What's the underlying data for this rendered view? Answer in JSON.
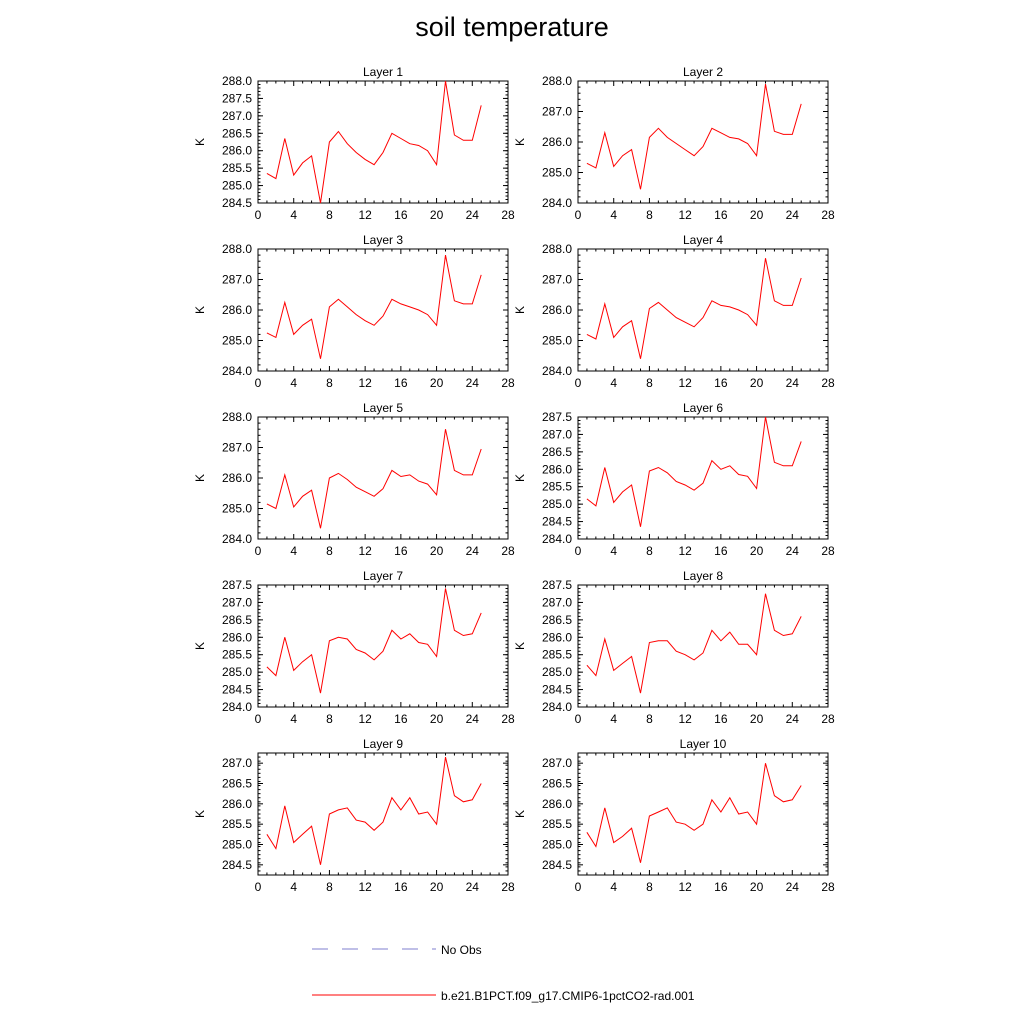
{
  "figure": {
    "title": "soil temperature",
    "legend": [
      {
        "label": "No Obs",
        "color": "#7f7fcf",
        "style": "dashed"
      },
      {
        "label": "b.e21.B1PCT.f09_g17.CMIP6-1pctCO2-rad.001",
        "color": "#ff0000",
        "style": "solid"
      }
    ]
  },
  "chart_data": [
    {
      "type": "line",
      "title": "Layer 1",
      "ylabel": "K",
      "xlabel": "",
      "xlim": [
        0,
        28
      ],
      "ylim": [
        284.5,
        288.0
      ],
      "xticks": [
        "0",
        "4",
        "8",
        "12",
        "16",
        "20",
        "24",
        "28"
      ],
      "yticks": [
        "284.5",
        "285.0",
        "285.5",
        "286.0",
        "286.5",
        "287.0",
        "287.5",
        "288.0"
      ],
      "grid": false,
      "series": [
        {
          "color": "#ff0000",
          "x": [
            1,
            2,
            3,
            4,
            5,
            6,
            7,
            8,
            9,
            10,
            11,
            12,
            13,
            14,
            15,
            16,
            17,
            18,
            19,
            20,
            21,
            22,
            23,
            24,
            25
          ],
          "values": [
            285.35,
            285.2,
            286.35,
            285.3,
            285.65,
            285.85,
            284.5,
            286.25,
            286.55,
            286.2,
            285.95,
            285.75,
            285.6,
            285.95,
            286.5,
            286.35,
            286.2,
            286.15,
            286.0,
            285.6,
            288.0,
            286.45,
            286.3,
            286.3,
            287.3
          ]
        }
      ]
    },
    {
      "type": "line",
      "title": "Layer 2",
      "ylabel": "K",
      "xlabel": "",
      "xlim": [
        0,
        28
      ],
      "ylim": [
        284.0,
        288.0
      ],
      "xticks": [
        "0",
        "4",
        "8",
        "12",
        "16",
        "20",
        "24",
        "28"
      ],
      "yticks": [
        "284.0",
        "285.0",
        "286.0",
        "287.0",
        "288.0"
      ],
      "grid": false,
      "series": [
        {
          "color": "#ff0000",
          "x": [
            1,
            2,
            3,
            4,
            5,
            6,
            7,
            8,
            9,
            10,
            11,
            12,
            13,
            14,
            15,
            16,
            17,
            18,
            19,
            20,
            21,
            22,
            23,
            24,
            25
          ],
          "values": [
            285.3,
            285.15,
            286.3,
            285.2,
            285.55,
            285.75,
            284.45,
            286.15,
            286.45,
            286.15,
            285.95,
            285.75,
            285.55,
            285.85,
            286.45,
            286.3,
            286.15,
            286.1,
            285.95,
            285.55,
            287.9,
            286.35,
            286.25,
            286.25,
            287.25
          ]
        }
      ]
    },
    {
      "type": "line",
      "title": "Layer 3",
      "ylabel": "K",
      "xlabel": "",
      "xlim": [
        0,
        28
      ],
      "ylim": [
        284.0,
        288.0
      ],
      "xticks": [
        "0",
        "4",
        "8",
        "12",
        "16",
        "20",
        "24",
        "28"
      ],
      "yticks": [
        "284.0",
        "285.0",
        "286.0",
        "287.0",
        "288.0"
      ],
      "grid": false,
      "series": [
        {
          "color": "#ff0000",
          "x": [
            1,
            2,
            3,
            4,
            5,
            6,
            7,
            8,
            9,
            10,
            11,
            12,
            13,
            14,
            15,
            16,
            17,
            18,
            19,
            20,
            21,
            22,
            23,
            24,
            25
          ],
          "values": [
            285.25,
            285.1,
            286.25,
            285.2,
            285.5,
            285.7,
            284.4,
            286.1,
            286.35,
            286.1,
            285.85,
            285.65,
            285.5,
            285.8,
            286.35,
            286.2,
            286.1,
            286.0,
            285.85,
            285.5,
            287.8,
            286.3,
            286.2,
            286.2,
            287.15
          ]
        }
      ]
    },
    {
      "type": "line",
      "title": "Layer 4",
      "ylabel": "K",
      "xlabel": "",
      "xlim": [
        0,
        28
      ],
      "ylim": [
        284.0,
        288.0
      ],
      "xticks": [
        "0",
        "4",
        "8",
        "12",
        "16",
        "20",
        "24",
        "28"
      ],
      "yticks": [
        "284.0",
        "285.0",
        "286.0",
        "287.0",
        "288.0"
      ],
      "grid": false,
      "series": [
        {
          "color": "#ff0000",
          "x": [
            1,
            2,
            3,
            4,
            5,
            6,
            7,
            8,
            9,
            10,
            11,
            12,
            13,
            14,
            15,
            16,
            17,
            18,
            19,
            20,
            21,
            22,
            23,
            24,
            25
          ],
          "values": [
            285.2,
            285.05,
            286.2,
            285.1,
            285.45,
            285.65,
            284.4,
            286.05,
            286.25,
            286.0,
            285.75,
            285.6,
            285.45,
            285.75,
            286.3,
            286.15,
            286.1,
            286.0,
            285.85,
            285.5,
            287.7,
            286.3,
            286.15,
            286.15,
            287.05
          ]
        }
      ]
    },
    {
      "type": "line",
      "title": "Layer 5",
      "ylabel": "K",
      "xlabel": "",
      "xlim": [
        0,
        28
      ],
      "ylim": [
        284.0,
        288.0
      ],
      "xticks": [
        "0",
        "4",
        "8",
        "12",
        "16",
        "20",
        "24",
        "28"
      ],
      "yticks": [
        "284.0",
        "285.0",
        "286.0",
        "287.0",
        "288.0"
      ],
      "grid": false,
      "series": [
        {
          "color": "#ff0000",
          "x": [
            1,
            2,
            3,
            4,
            5,
            6,
            7,
            8,
            9,
            10,
            11,
            12,
            13,
            14,
            15,
            16,
            17,
            18,
            19,
            20,
            21,
            22,
            23,
            24,
            25
          ],
          "values": [
            285.15,
            285.0,
            286.1,
            285.05,
            285.4,
            285.6,
            284.35,
            286.0,
            286.15,
            285.95,
            285.7,
            285.55,
            285.4,
            285.65,
            286.25,
            286.05,
            286.1,
            285.9,
            285.8,
            285.45,
            287.6,
            286.25,
            286.1,
            286.1,
            286.95
          ]
        }
      ]
    },
    {
      "type": "line",
      "title": "Layer 6",
      "ylabel": "K",
      "xlabel": "",
      "xlim": [
        0,
        28
      ],
      "ylim": [
        284.0,
        287.5
      ],
      "xticks": [
        "0",
        "4",
        "8",
        "12",
        "16",
        "20",
        "24",
        "28"
      ],
      "yticks": [
        "284.0",
        "284.5",
        "285.0",
        "285.5",
        "286.0",
        "286.5",
        "287.0",
        "287.5"
      ],
      "grid": false,
      "series": [
        {
          "color": "#ff0000",
          "x": [
            1,
            2,
            3,
            4,
            5,
            6,
            7,
            8,
            9,
            10,
            11,
            12,
            13,
            14,
            15,
            16,
            17,
            18,
            19,
            20,
            21,
            22,
            23,
            24,
            25
          ],
          "values": [
            285.15,
            284.95,
            286.05,
            285.05,
            285.35,
            285.55,
            284.35,
            285.95,
            286.05,
            285.9,
            285.65,
            285.55,
            285.4,
            285.6,
            286.25,
            286.0,
            286.1,
            285.85,
            285.8,
            285.45,
            287.5,
            286.2,
            286.1,
            286.1,
            286.8
          ]
        }
      ]
    },
    {
      "type": "line",
      "title": "Layer 7",
      "ylabel": "K",
      "xlabel": "",
      "xlim": [
        0,
        28
      ],
      "ylim": [
        284.0,
        287.5
      ],
      "xticks": [
        "0",
        "4",
        "8",
        "12",
        "16",
        "20",
        "24",
        "28"
      ],
      "yticks": [
        "284.0",
        "284.5",
        "285.0",
        "285.5",
        "286.0",
        "286.5",
        "287.0",
        "287.5"
      ],
      "grid": false,
      "series": [
        {
          "color": "#ff0000",
          "x": [
            1,
            2,
            3,
            4,
            5,
            6,
            7,
            8,
            9,
            10,
            11,
            12,
            13,
            14,
            15,
            16,
            17,
            18,
            19,
            20,
            21,
            22,
            23,
            24,
            25
          ],
          "values": [
            285.15,
            284.9,
            286.0,
            285.05,
            285.3,
            285.5,
            284.4,
            285.9,
            286.0,
            285.95,
            285.65,
            285.55,
            285.35,
            285.6,
            286.2,
            285.95,
            286.1,
            285.85,
            285.8,
            285.45,
            287.4,
            286.2,
            286.05,
            286.1,
            286.7
          ]
        }
      ]
    },
    {
      "type": "line",
      "title": "Layer 8",
      "ylabel": "K",
      "xlabel": "",
      "xlim": [
        0,
        28
      ],
      "ylim": [
        284.0,
        287.5
      ],
      "xticks": [
        "0",
        "4",
        "8",
        "12",
        "16",
        "20",
        "24",
        "28"
      ],
      "yticks": [
        "284.0",
        "284.5",
        "285.0",
        "285.5",
        "286.0",
        "286.5",
        "287.0",
        "287.5"
      ],
      "grid": false,
      "series": [
        {
          "color": "#ff0000",
          "x": [
            1,
            2,
            3,
            4,
            5,
            6,
            7,
            8,
            9,
            10,
            11,
            12,
            13,
            14,
            15,
            16,
            17,
            18,
            19,
            20,
            21,
            22,
            23,
            24,
            25
          ],
          "values": [
            285.2,
            284.9,
            285.95,
            285.05,
            285.25,
            285.45,
            284.4,
            285.85,
            285.9,
            285.9,
            285.6,
            285.5,
            285.35,
            285.55,
            286.2,
            285.9,
            286.15,
            285.8,
            285.8,
            285.5,
            287.25,
            286.2,
            286.05,
            286.1,
            286.6
          ]
        }
      ]
    },
    {
      "type": "line",
      "title": "Layer 9",
      "ylabel": "K",
      "xlabel": "",
      "xlim": [
        0,
        28
      ],
      "ylim": [
        284.25,
        287.25
      ],
      "xticks": [
        "0",
        "4",
        "8",
        "12",
        "16",
        "20",
        "24",
        "28"
      ],
      "yticks": [
        "284.5",
        "285.0",
        "285.5",
        "286.0",
        "286.5",
        "287.0"
      ],
      "grid": false,
      "series": [
        {
          "color": "#ff0000",
          "x": [
            1,
            2,
            3,
            4,
            5,
            6,
            7,
            8,
            9,
            10,
            11,
            12,
            13,
            14,
            15,
            16,
            17,
            18,
            19,
            20,
            21,
            22,
            23,
            24,
            25
          ],
          "values": [
            285.25,
            284.9,
            285.95,
            285.05,
            285.25,
            285.45,
            284.5,
            285.75,
            285.85,
            285.9,
            285.6,
            285.55,
            285.35,
            285.55,
            286.15,
            285.85,
            286.15,
            285.75,
            285.8,
            285.5,
            287.15,
            286.2,
            286.05,
            286.1,
            286.5
          ]
        }
      ]
    },
    {
      "type": "line",
      "title": "Layer 10",
      "ylabel": "K",
      "xlabel": "",
      "xlim": [
        0,
        28
      ],
      "ylim": [
        284.25,
        287.25
      ],
      "xticks": [
        "0",
        "4",
        "8",
        "12",
        "16",
        "20",
        "24",
        "28"
      ],
      "yticks": [
        "284.5",
        "285.0",
        "285.5",
        "286.0",
        "286.5",
        "287.0"
      ],
      "grid": false,
      "series": [
        {
          "color": "#ff0000",
          "x": [
            1,
            2,
            3,
            4,
            5,
            6,
            7,
            8,
            9,
            10,
            11,
            12,
            13,
            14,
            15,
            16,
            17,
            18,
            19,
            20,
            21,
            22,
            23,
            24,
            25
          ],
          "values": [
            285.3,
            284.95,
            285.9,
            285.05,
            285.2,
            285.4,
            284.55,
            285.7,
            285.8,
            285.9,
            285.55,
            285.5,
            285.35,
            285.5,
            286.1,
            285.8,
            286.15,
            285.75,
            285.8,
            285.5,
            287.0,
            286.2,
            286.05,
            286.1,
            286.45
          ]
        }
      ]
    }
  ]
}
